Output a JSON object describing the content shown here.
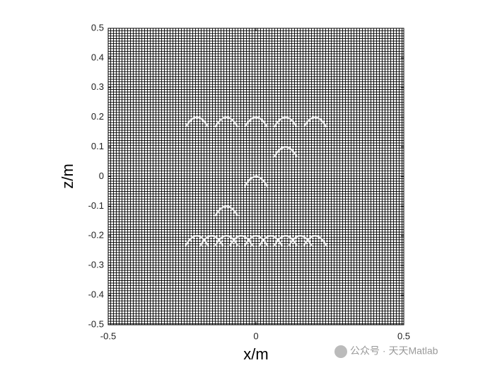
{
  "chart_data": {
    "type": "mesh",
    "xlabel": "x/m",
    "ylabel": "z/m",
    "xlim": [
      -0.5,
      0.5
    ],
    "xticks": [
      -0.5,
      0,
      0.5
    ],
    "ylim": [
      -0.5,
      0.5
    ],
    "yticks": [
      -0.5,
      -0.4,
      -0.3,
      -0.2,
      -0.1,
      0,
      0.1,
      0.2,
      0.3,
      0.4,
      0.5
    ],
    "x": [
      -0.2,
      -0.1,
      0,
      0.1,
      0.2,
      0.1,
      0,
      -0.1,
      -0.2,
      -0.15,
      -0.1,
      -0.05,
      0,
      0.05,
      0.1,
      0.15,
      0.2
    ],
    "values": [
      0.2,
      0.2,
      0.2,
      0.2,
      0.2,
      0.1,
      0,
      -0.1,
      -0.2,
      -0.2,
      -0.2,
      -0.2,
      -0.2,
      -0.2,
      -0.2,
      -0.2,
      -0.2
    ],
    "color": "#ffffff",
    "watermark": "公众号 · 天天Matlab"
  }
}
